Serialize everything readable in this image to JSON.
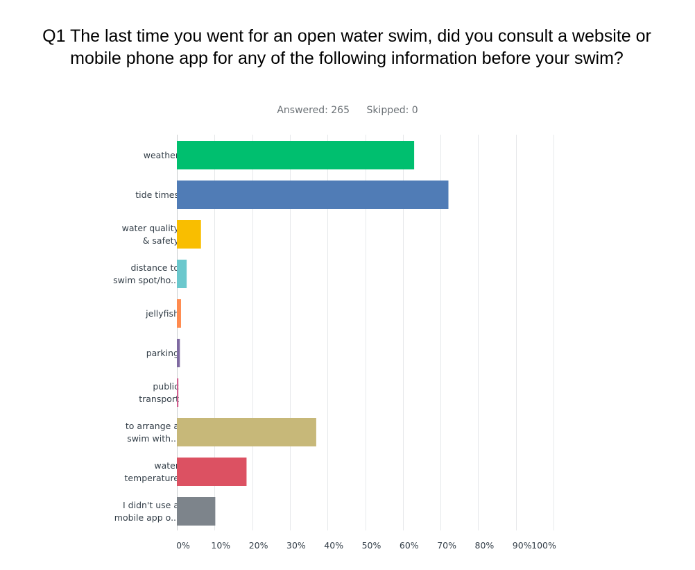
{
  "header": {
    "title": "Q1 The last time you went for an open water swim, did you consult a website or mobile phone app for any of the following information before your swim?",
    "answered": "Answered: 265",
    "skipped": "Skipped: 0"
  },
  "chart_data": {
    "type": "bar",
    "orientation": "horizontal",
    "categories": [
      [
        "weather"
      ],
      [
        "tide times"
      ],
      [
        "water quality",
        "& safety"
      ],
      [
        "distance to",
        "swim spot/ho..."
      ],
      [
        "jellyfish"
      ],
      [
        "parking"
      ],
      [
        "public",
        "transport"
      ],
      [
        "to arrange a",
        "swim with..."
      ],
      [
        "water",
        "temperature"
      ],
      [
        "I didn't use a",
        "mobile app o..."
      ]
    ],
    "values": [
      63,
      72.1,
      6.4,
      2.6,
      1.1,
      0.8,
      0.4,
      37,
      18.5,
      10.2
    ],
    "colors": [
      "#00bf6f",
      "#507cb6",
      "#f9be00",
      "#6bc8cd",
      "#ff8b4f",
      "#7f6aa1",
      "#d25f90",
      "#c7b879",
      "#dc5162",
      "#7d848b"
    ],
    "xticks": [
      "0%",
      "10%",
      "20%",
      "30%",
      "40%",
      "50%",
      "60%",
      "70%",
      "80%",
      "90%",
      "100%"
    ],
    "xlim": [
      0,
      100
    ],
    "grid": true,
    "legend": "none"
  }
}
